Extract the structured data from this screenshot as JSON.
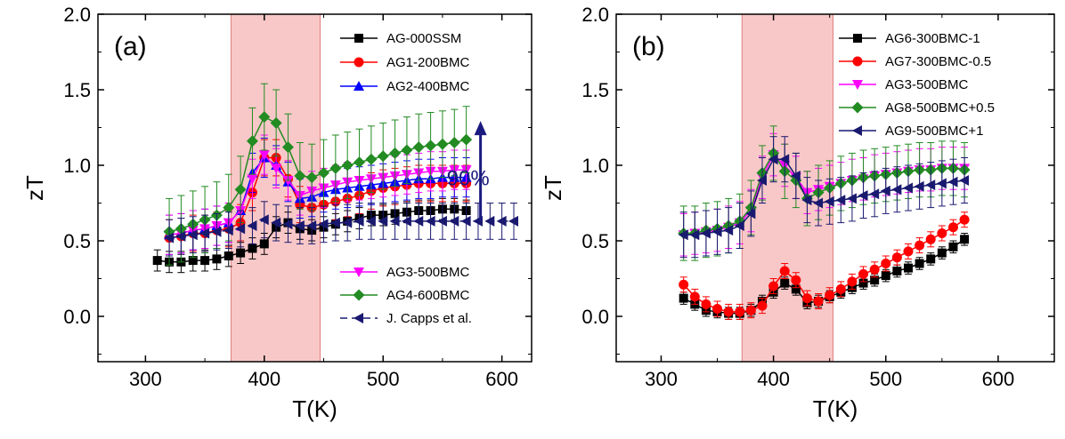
{
  "chart_data": [
    {
      "type": "scatter",
      "panel_label": "(a)",
      "xlabel": "T(K)",
      "ylabel": "zT",
      "xlim": [
        260,
        625
      ],
      "ylim": [
        -0.3,
        2.0
      ],
      "xticks": [
        300,
        400,
        500,
        600
      ],
      "yticks": [
        0.0,
        0.5,
        1.0,
        1.5,
        2.0
      ],
      "xtick_labels": [
        "300",
        "400",
        "500",
        "600"
      ],
      "ytick_labels": [
        "0.0",
        "0.5",
        "1.0",
        "1.5",
        "2.0"
      ],
      "highlight_band": {
        "x_start": 372,
        "x_end": 447,
        "color": "#f8c8c8"
      },
      "annotation": {
        "text": "90%",
        "x": 582,
        "from_y": 0.63,
        "to_y": 1.27,
        "color": "#1a1a80"
      },
      "legend": [
        {
          "position": "top-right",
          "series": [
            0,
            1,
            2
          ]
        },
        {
          "position": "bottom-right",
          "series": [
            3,
            4,
            5
          ]
        }
      ],
      "series": [
        {
          "name": "AG-000SSM",
          "color": "#000000",
          "marker": "square",
          "error": 0.07,
          "x": [
            310,
            320,
            330,
            340,
            350,
            360,
            370,
            380,
            390,
            400,
            410,
            420,
            430,
            440,
            450,
            460,
            470,
            480,
            490,
            500,
            510,
            520,
            530,
            540,
            550,
            560,
            570
          ],
          "y": [
            0.37,
            0.36,
            0.36,
            0.37,
            0.37,
            0.38,
            0.4,
            0.42,
            0.45,
            0.48,
            0.59,
            0.62,
            0.58,
            0.57,
            0.59,
            0.61,
            0.63,
            0.65,
            0.67,
            0.67,
            0.68,
            0.69,
            0.7,
            0.7,
            0.71,
            0.71,
            0.7
          ]
        },
        {
          "name": "AG1-200BMC",
          "color": "#ff0000",
          "marker": "circle",
          "error": 0.12,
          "x": [
            320,
            330,
            340,
            350,
            360,
            370,
            380,
            390,
            400,
            410,
            420,
            430,
            440,
            450,
            460,
            470,
            480,
            490,
            500,
            510,
            520,
            530,
            540,
            550,
            560,
            570
          ],
          "y": [
            0.52,
            0.53,
            0.55,
            0.55,
            0.57,
            0.58,
            0.62,
            0.82,
            1.05,
            1.05,
            0.91,
            0.74,
            0.72,
            0.74,
            0.76,
            0.78,
            0.8,
            0.83,
            0.85,
            0.86,
            0.87,
            0.88,
            0.88,
            0.88,
            0.88,
            0.88
          ]
        },
        {
          "name": "AG2-400BMC",
          "color": "#0000ff",
          "marker": "triangle-up",
          "error": 0.13,
          "x": [
            320,
            330,
            340,
            350,
            360,
            370,
            380,
            390,
            400,
            410,
            420,
            430,
            440,
            450,
            460,
            470,
            480,
            490,
            500,
            510,
            520,
            530,
            540,
            550,
            560,
            570
          ],
          "y": [
            0.54,
            0.55,
            0.57,
            0.58,
            0.6,
            0.62,
            0.7,
            0.95,
            1.05,
            1.0,
            0.89,
            0.78,
            0.79,
            0.82,
            0.84,
            0.85,
            0.86,
            0.87,
            0.88,
            0.89,
            0.9,
            0.91,
            0.91,
            0.92,
            0.92,
            0.92
          ]
        },
        {
          "name": "AG3-500BMC",
          "color": "#ff00ff",
          "marker": "triangle-down",
          "error": 0.13,
          "x": [
            320,
            330,
            340,
            350,
            360,
            370,
            380,
            390,
            400,
            410,
            420,
            430,
            440,
            450,
            460,
            470,
            480,
            490,
            500,
            510,
            520,
            530,
            540,
            550,
            560,
            570
          ],
          "y": [
            0.54,
            0.55,
            0.57,
            0.58,
            0.6,
            0.62,
            0.7,
            0.91,
            1.07,
            0.98,
            0.9,
            0.8,
            0.83,
            0.85,
            0.87,
            0.89,
            0.9,
            0.91,
            0.92,
            0.93,
            0.94,
            0.95,
            0.96,
            0.96,
            0.97,
            0.97
          ]
        },
        {
          "name": "AG4-600BMC",
          "color": "#228b22",
          "marker": "diamond",
          "error": 0.22,
          "x": [
            320,
            330,
            340,
            350,
            360,
            370,
            380,
            390,
            400,
            410,
            420,
            430,
            440,
            450,
            460,
            470,
            480,
            490,
            500,
            510,
            520,
            530,
            540,
            550,
            560,
            570
          ],
          "y": [
            0.56,
            0.58,
            0.61,
            0.64,
            0.67,
            0.72,
            0.84,
            1.16,
            1.32,
            1.28,
            1.12,
            0.93,
            0.92,
            0.95,
            0.98,
            1.0,
            1.02,
            1.04,
            1.06,
            1.08,
            1.1,
            1.12,
            1.13,
            1.14,
            1.15,
            1.17
          ]
        },
        {
          "name": "J. Capps et al.",
          "color": "#191970",
          "marker": "triangle-left",
          "error": 0.12,
          "dashed": true,
          "x": [
            320,
            330,
            340,
            350,
            360,
            370,
            380,
            390,
            400,
            410,
            420,
            430,
            440,
            450,
            460,
            470,
            480,
            490,
            500,
            510,
            520,
            530,
            540,
            550,
            560,
            570,
            580,
            590,
            600,
            610
          ],
          "y": [
            0.52,
            0.53,
            0.54,
            0.55,
            0.56,
            0.57,
            0.58,
            0.6,
            0.64,
            0.62,
            0.61,
            0.6,
            0.6,
            0.61,
            0.62,
            0.62,
            0.63,
            0.63,
            0.63,
            0.63,
            0.63,
            0.63,
            0.63,
            0.63,
            0.63,
            0.63,
            0.63,
            0.63,
            0.63,
            0.63
          ]
        }
      ]
    },
    {
      "type": "scatter",
      "panel_label": "(b)",
      "xlabel": "T(K)",
      "ylabel": "zT",
      "xlim": [
        260,
        650
      ],
      "ylim": [
        -0.3,
        2.0
      ],
      "xticks": [
        300,
        400,
        500,
        600
      ],
      "yticks": [
        0.0,
        0.5,
        1.0,
        1.5,
        2.0
      ],
      "xtick_labels": [
        "300",
        "400",
        "500",
        "600"
      ],
      "ytick_labels": [
        "0.0",
        "0.5",
        "1.0",
        "1.5",
        "2.0"
      ],
      "highlight_band": {
        "x_start": 372,
        "x_end": 453,
        "color": "#f8c8c8"
      },
      "legend": [
        {
          "position": "top-right",
          "series": [
            0,
            1,
            2,
            3,
            4
          ]
        }
      ],
      "series": [
        {
          "name": "AG6-300BMC-1",
          "color": "#000000",
          "marker": "square",
          "error": 0.04,
          "x": [
            320,
            330,
            340,
            350,
            360,
            370,
            380,
            390,
            400,
            410,
            420,
            430,
            440,
            450,
            460,
            470,
            480,
            490,
            500,
            510,
            520,
            530,
            540,
            550,
            560,
            570
          ],
          "y": [
            0.12,
            0.08,
            0.04,
            0.03,
            0.02,
            0.02,
            0.04,
            0.1,
            0.16,
            0.22,
            0.18,
            0.09,
            0.1,
            0.13,
            0.16,
            0.19,
            0.22,
            0.24,
            0.27,
            0.3,
            0.32,
            0.35,
            0.38,
            0.42,
            0.46,
            0.51
          ]
        },
        {
          "name": "AG7-300BMC-0.5",
          "color": "#ff0000",
          "marker": "circle",
          "error": 0.05,
          "x": [
            320,
            330,
            340,
            350,
            360,
            370,
            380,
            390,
            400,
            410,
            420,
            430,
            440,
            450,
            460,
            470,
            480,
            490,
            500,
            510,
            520,
            530,
            540,
            550,
            560,
            570
          ],
          "y": [
            0.21,
            0.13,
            0.08,
            0.05,
            0.03,
            0.03,
            0.04,
            0.07,
            0.2,
            0.3,
            0.24,
            0.12,
            0.1,
            0.14,
            0.18,
            0.23,
            0.28,
            0.31,
            0.35,
            0.39,
            0.43,
            0.47,
            0.51,
            0.55,
            0.59,
            0.64
          ]
        },
        {
          "name": "AG3-500BMC",
          "color": "#ff00ff",
          "marker": "triangle-down",
          "error": 0.14,
          "x": [
            320,
            330,
            340,
            350,
            360,
            370,
            380,
            390,
            400,
            410,
            420,
            430,
            440,
            450,
            460,
            470,
            480,
            490,
            500,
            510,
            520,
            530,
            540,
            550,
            560,
            570
          ],
          "y": [
            0.54,
            0.55,
            0.56,
            0.57,
            0.59,
            0.62,
            0.7,
            0.92,
            1.07,
            1.0,
            0.92,
            0.82,
            0.84,
            0.86,
            0.88,
            0.9,
            0.91,
            0.93,
            0.94,
            0.95,
            0.96,
            0.97,
            0.97,
            0.98,
            0.98,
            0.98
          ]
        },
        {
          "name": "AG8-500BMC+0.5",
          "color": "#228b22",
          "marker": "diamond",
          "error": 0.18,
          "x": [
            320,
            330,
            340,
            350,
            360,
            370,
            380,
            390,
            400,
            410,
            420,
            430,
            440,
            450,
            460,
            470,
            480,
            490,
            500,
            510,
            520,
            530,
            540,
            550,
            560,
            570
          ],
          "y": [
            0.55,
            0.55,
            0.57,
            0.58,
            0.6,
            0.63,
            0.72,
            0.95,
            1.08,
            0.96,
            0.9,
            0.78,
            0.82,
            0.85,
            0.88,
            0.9,
            0.92,
            0.93,
            0.94,
            0.95,
            0.96,
            0.97,
            0.97,
            0.98,
            0.98,
            0.97
          ]
        },
        {
          "name": "AG9-500BMC+1",
          "color": "#191970",
          "marker": "triangle-left",
          "error": 0.15,
          "x": [
            320,
            330,
            340,
            350,
            360,
            370,
            380,
            390,
            400,
            410,
            420,
            430,
            440,
            450,
            460,
            470,
            480,
            490,
            500,
            510,
            520,
            530,
            540,
            550,
            560,
            570
          ],
          "y": [
            0.54,
            0.54,
            0.55,
            0.56,
            0.57,
            0.6,
            0.68,
            0.9,
            1.04,
            1.04,
            0.93,
            0.77,
            0.75,
            0.76,
            0.77,
            0.78,
            0.8,
            0.81,
            0.83,
            0.84,
            0.85,
            0.86,
            0.87,
            0.88,
            0.89,
            0.9
          ]
        }
      ]
    }
  ]
}
